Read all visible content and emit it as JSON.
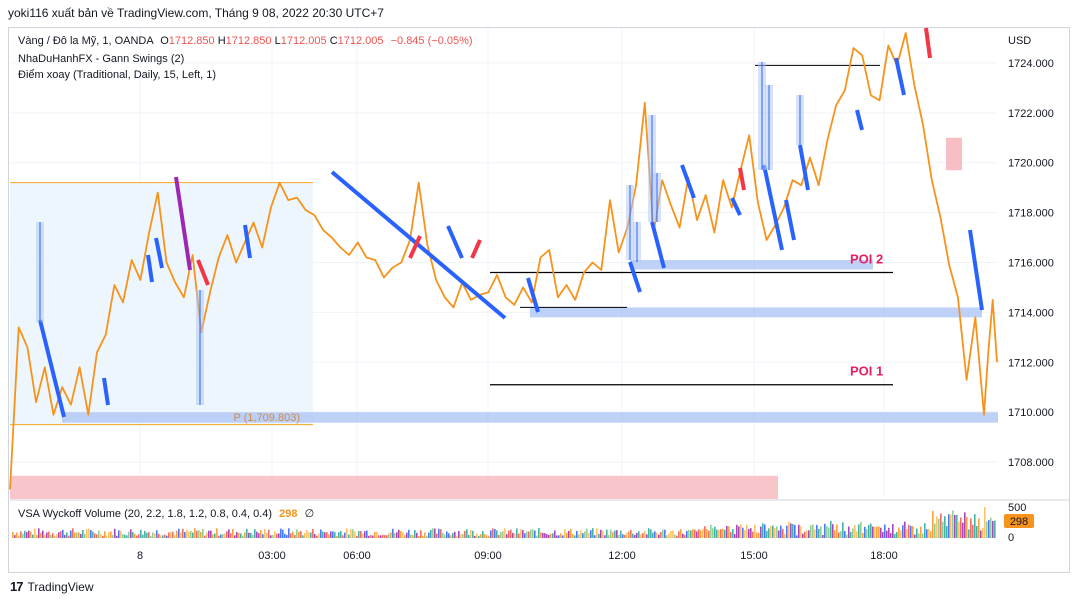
{
  "header": {
    "text": "yoki116 xuất bản về TradingView.com, Tháng 9 08, 2022 20:30 UTC+7"
  },
  "legend": {
    "symbol": "Vàng / Đô la Mỹ, 1, OANDA",
    "o_label": "O",
    "o_value": "1712.850",
    "h_label": "H",
    "h_value": "1712.850",
    "l_label": "L",
    "l_value": "1712.005",
    "c_label": "C",
    "c_value": "1712.005",
    "change": "−0.845 (−0.05%)",
    "indicator1": "NhaDuHanhFX - Gann Swings (2)",
    "indicator2": "Điểm xoay (Traditional, Daily, 15, Left, 1)",
    "volume_indicator": "VSA Wyckoff Volume (20, 2.2, 1.8, 1.2, 0.8, 0.4, 0.4)",
    "volume_value": "298",
    "volume_extra": "∅"
  },
  "footer": {
    "logo_text": "TradingView"
  },
  "colors": {
    "price_line": "#f7931a",
    "gann_blue": "#2962ff",
    "gann_red": "#f23645",
    "gann_purple": "#9c27b0",
    "zone_blue": "#aec6f5",
    "zone_red": "#f6b7bd",
    "zone_light": "#e8f4fb",
    "poi_text": "#e91e63",
    "axis_text": "#131722"
  },
  "chart_data": {
    "type": "line",
    "currency": "USD",
    "y_ticks": [
      "1724.000",
      "1722.000",
      "1720.000",
      "1718.000",
      "1716.000",
      "1714.000",
      "1712.000",
      "1710.000",
      "1708.000"
    ],
    "ylim": [
      1706.6,
      1725.4
    ],
    "x_ticks": [
      "8",
      "03:00",
      "06:00",
      "09:00",
      "12:00",
      "15:00",
      "18:00"
    ],
    "series": [
      {
        "values_x": [
          0,
          0.2,
          0.4,
          0.6,
          0.8,
          1.0,
          1.2,
          1.4,
          1.6,
          1.8,
          2.0,
          2.2,
          2.4,
          2.6,
          2.8,
          3.0,
          3.2,
          3.4,
          3.6,
          3.8,
          4.0,
          4.2,
          4.4,
          4.6,
          4.8,
          5.0,
          5.2,
          5.4,
          5.6,
          5.8,
          6.0,
          6.2,
          6.4,
          6.6,
          6.8,
          7.0,
          7.2,
          7.4,
          7.6,
          7.8,
          8.0,
          8.2,
          8.4,
          8.6,
          8.8,
          9.0,
          9.2,
          9.4,
          9.6,
          9.8,
          10.0,
          10.2,
          10.4,
          10.6,
          10.8,
          11.0,
          11.2,
          11.4,
          11.6,
          11.8,
          12.0,
          12.2,
          12.4,
          12.6,
          12.8,
          13.0,
          13.2,
          13.4,
          13.6,
          13.8,
          14.0,
          14.2,
          14.4,
          14.6,
          14.8,
          15.0,
          15.2,
          15.4,
          15.6,
          15.8,
          16.0,
          16.2,
          16.4,
          16.6,
          16.8,
          17.0,
          17.2,
          17.4,
          17.6,
          17.8,
          18.0,
          18.2,
          18.4,
          18.6,
          18.8,
          19.0,
          19.2,
          19.4,
          19.6,
          19.8,
          20.0,
          20.2,
          20.4,
          20.6,
          20.8,
          21.0,
          21.2,
          21.4,
          21.6,
          21.8,
          22.0,
          22.2,
          22.4,
          22.5,
          22.6,
          22.7
        ],
        "values": [
          1706.9,
          1713.4,
          1712.6,
          1710.4,
          1711.8,
          1709.9,
          1711.0,
          1710.3,
          1711.8,
          1709.9,
          1712.4,
          1713.1,
          1715.1,
          1714.4,
          1716.1,
          1715.3,
          1717.2,
          1718.8,
          1716.0,
          1715.2,
          1714.6,
          1716.3,
          1713.2,
          1714.8,
          1716.2,
          1717.1,
          1716.0,
          1716.8,
          1717.6,
          1716.6,
          1718.2,
          1719.2,
          1718.5,
          1718.6,
          1718.1,
          1717.9,
          1717.3,
          1717.0,
          1716.6,
          1716.3,
          1716.8,
          1716.2,
          1716.1,
          1715.4,
          1715.8,
          1716.0,
          1716.9,
          1719.2,
          1716.7,
          1715.3,
          1714.6,
          1714.2,
          1715.2,
          1714.5,
          1714.7,
          1714.8,
          1715.5,
          1714.6,
          1714.3,
          1715.0,
          1714.4,
          1716.2,
          1716.5,
          1714.6,
          1715.1,
          1714.5,
          1715.6,
          1716.0,
          1715.7,
          1718.5,
          1716.4,
          1717.4,
          1719.1,
          1722.4,
          1717.2,
          1719.3,
          1718.3,
          1717.4,
          1719.4,
          1717.7,
          1718.7,
          1717.2,
          1719.3,
          1718.2,
          1719.7,
          1721.1,
          1718.4,
          1716.9,
          1717.5,
          1718.2,
          1719.3,
          1719.1,
          1720.2,
          1719.1,
          1720.9,
          1722.3,
          1722.9,
          1724.6,
          1724.3,
          1722.7,
          1722.5,
          1724.7,
          1723.9,
          1725.2,
          1723.1,
          1721.5,
          1719.3,
          1717.8,
          1715.9,
          1714.6,
          1711.3,
          1713.8,
          1709.9,
          1712.4,
          1714.5,
          1712.0
        ]
      }
    ],
    "annotations": [
      {
        "label": "POI 2",
        "price": 1715.6
      },
      {
        "label": "POI 1",
        "price": 1711.1
      },
      {
        "label": "P (1,709.803)",
        "price": 1709.803
      }
    ],
    "price_axis_labels": [
      {
        "text": "1712.005",
        "price": 1712.005
      }
    ],
    "volume": {
      "axis_ticks": [
        "500",
        "0"
      ],
      "current_value": "298"
    },
    "grid": true
  }
}
